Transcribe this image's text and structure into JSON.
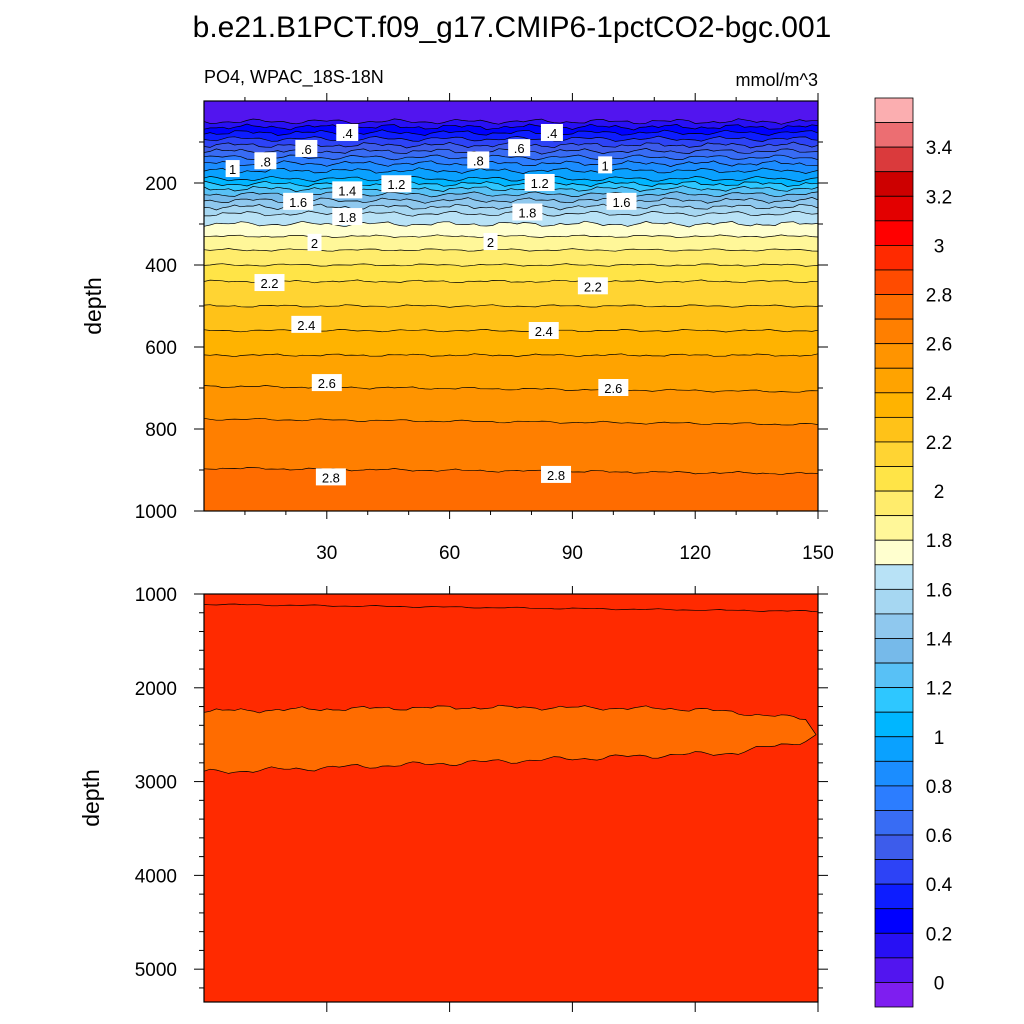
{
  "title": "b.e21.B1PCT.f09_g17.CMIP6-1pctCO2-bgc.001",
  "subtitle_left": "PO4, WPAC_18S-18N",
  "subtitle_right": "mmol/m^3",
  "chart_data": [
    {
      "type": "heatmap",
      "panel": "upper",
      "variable": "PO4",
      "region": "WPAC_18S-18N",
      "units": "mmol/m^3",
      "xlabel": "",
      "ylabel": "depth",
      "xlim": [
        0,
        150
      ],
      "ylim": [
        1000,
        0
      ],
      "xticks": [
        30,
        60,
        90,
        120,
        150
      ],
      "yticks": [
        200,
        400,
        600,
        800,
        1000
      ],
      "profile_depth": [
        0,
        50,
        70,
        100,
        130,
        160,
        190,
        220,
        250,
        275,
        300,
        330,
        380,
        440,
        500,
        560,
        620,
        700,
        780,
        850,
        900,
        950,
        1000
      ],
      "profile_value": [
        0.15,
        0.2,
        0.35,
        0.55,
        0.75,
        0.95,
        1.1,
        1.35,
        1.55,
        1.7,
        1.8,
        1.9,
        2.05,
        2.2,
        2.3,
        2.4,
        2.5,
        2.6,
        2.7,
        2.75,
        2.8,
        2.82,
        2.84
      ],
      "contour_labels": [
        {
          "text": ".4",
          "x": 35,
          "depth": 78
        },
        {
          "text": ".4",
          "x": 85,
          "depth": 78
        },
        {
          "text": ".6",
          "x": 25,
          "depth": 117
        },
        {
          "text": ".6",
          "x": 77,
          "depth": 115
        },
        {
          "text": ".8",
          "x": 15,
          "depth": 147
        },
        {
          "text": ".8",
          "x": 67,
          "depth": 145
        },
        {
          "text": "1",
          "x": 7,
          "depth": 166
        },
        {
          "text": "1",
          "x": 98,
          "depth": 157
        },
        {
          "text": "1.4",
          "x": 35,
          "depth": 218
        },
        {
          "text": "1.2",
          "x": 47,
          "depth": 203
        },
        {
          "text": "1.2",
          "x": 82,
          "depth": 200
        },
        {
          "text": "1.6",
          "x": 23,
          "depth": 246
        },
        {
          "text": "1.6",
          "x": 102,
          "depth": 246
        },
        {
          "text": "1.8",
          "x": 35,
          "depth": 283
        },
        {
          "text": "1.8",
          "x": 79,
          "depth": 272
        },
        {
          "text": "2",
          "x": 27,
          "depth": 346
        },
        {
          "text": "2",
          "x": 70,
          "depth": 344
        },
        {
          "text": "2.2",
          "x": 16,
          "depth": 444
        },
        {
          "text": "2.2",
          "x": 95,
          "depth": 452
        },
        {
          "text": "2.4",
          "x": 25,
          "depth": 546
        },
        {
          "text": "2.4",
          "x": 83,
          "depth": 561
        },
        {
          "text": "2.6",
          "x": 30,
          "depth": 688
        },
        {
          "text": "2.6",
          "x": 100,
          "depth": 700
        },
        {
          "text": "2.8",
          "x": 31,
          "depth": 918
        },
        {
          "text": "2.8",
          "x": 86,
          "depth": 912
        }
      ]
    },
    {
      "type": "heatmap",
      "panel": "lower",
      "variable": "PO4",
      "xlabel": "",
      "ylabel": "depth",
      "xlim": [
        0,
        150
      ],
      "ylim": [
        5350,
        1000
      ],
      "yticks": [
        1000,
        2000,
        3000,
        4000,
        5000
      ],
      "background_value": 3.0,
      "band": {
        "value": 2.9,
        "top_depth": 2250,
        "bottom_depth": 2900
      }
    }
  ],
  "colorbar": {
    "ticks": [
      "3.4",
      "3.2",
      "3",
      "2.8",
      "2.6",
      "2.4",
      "2.2",
      "2",
      "1.8",
      "1.6",
      "1.4",
      "1.2",
      "1",
      "0.8",
      "0.6",
      "0.4",
      "0.2",
      "0"
    ],
    "colors": [
      "#fbaeb0",
      "#ec6e72",
      "#da3a3c",
      "#cd0000",
      "#e30000",
      "#ff0000",
      "#ff2a00",
      "#ff4b00",
      "#ff6c00",
      "#ff7f00",
      "#ff9400",
      "#ffa300",
      "#ffb300",
      "#ffc218",
      "#ffd433",
      "#ffe447",
      "#ffec6c",
      "#fff799",
      "#ffffcf",
      "#b8e2f6",
      "#a6d7f2",
      "#8fc8ee",
      "#76baea",
      "#58c1f6",
      "#2ec7ff",
      "#00b6ff",
      "#0aa1ff",
      "#1b8dff",
      "#2c7dff",
      "#386cf4",
      "#3d5ceb",
      "#2d43f6",
      "#0d1dff",
      "#0000ff",
      "#2810f4",
      "#5215ef",
      "#7e1ef0"
    ]
  }
}
